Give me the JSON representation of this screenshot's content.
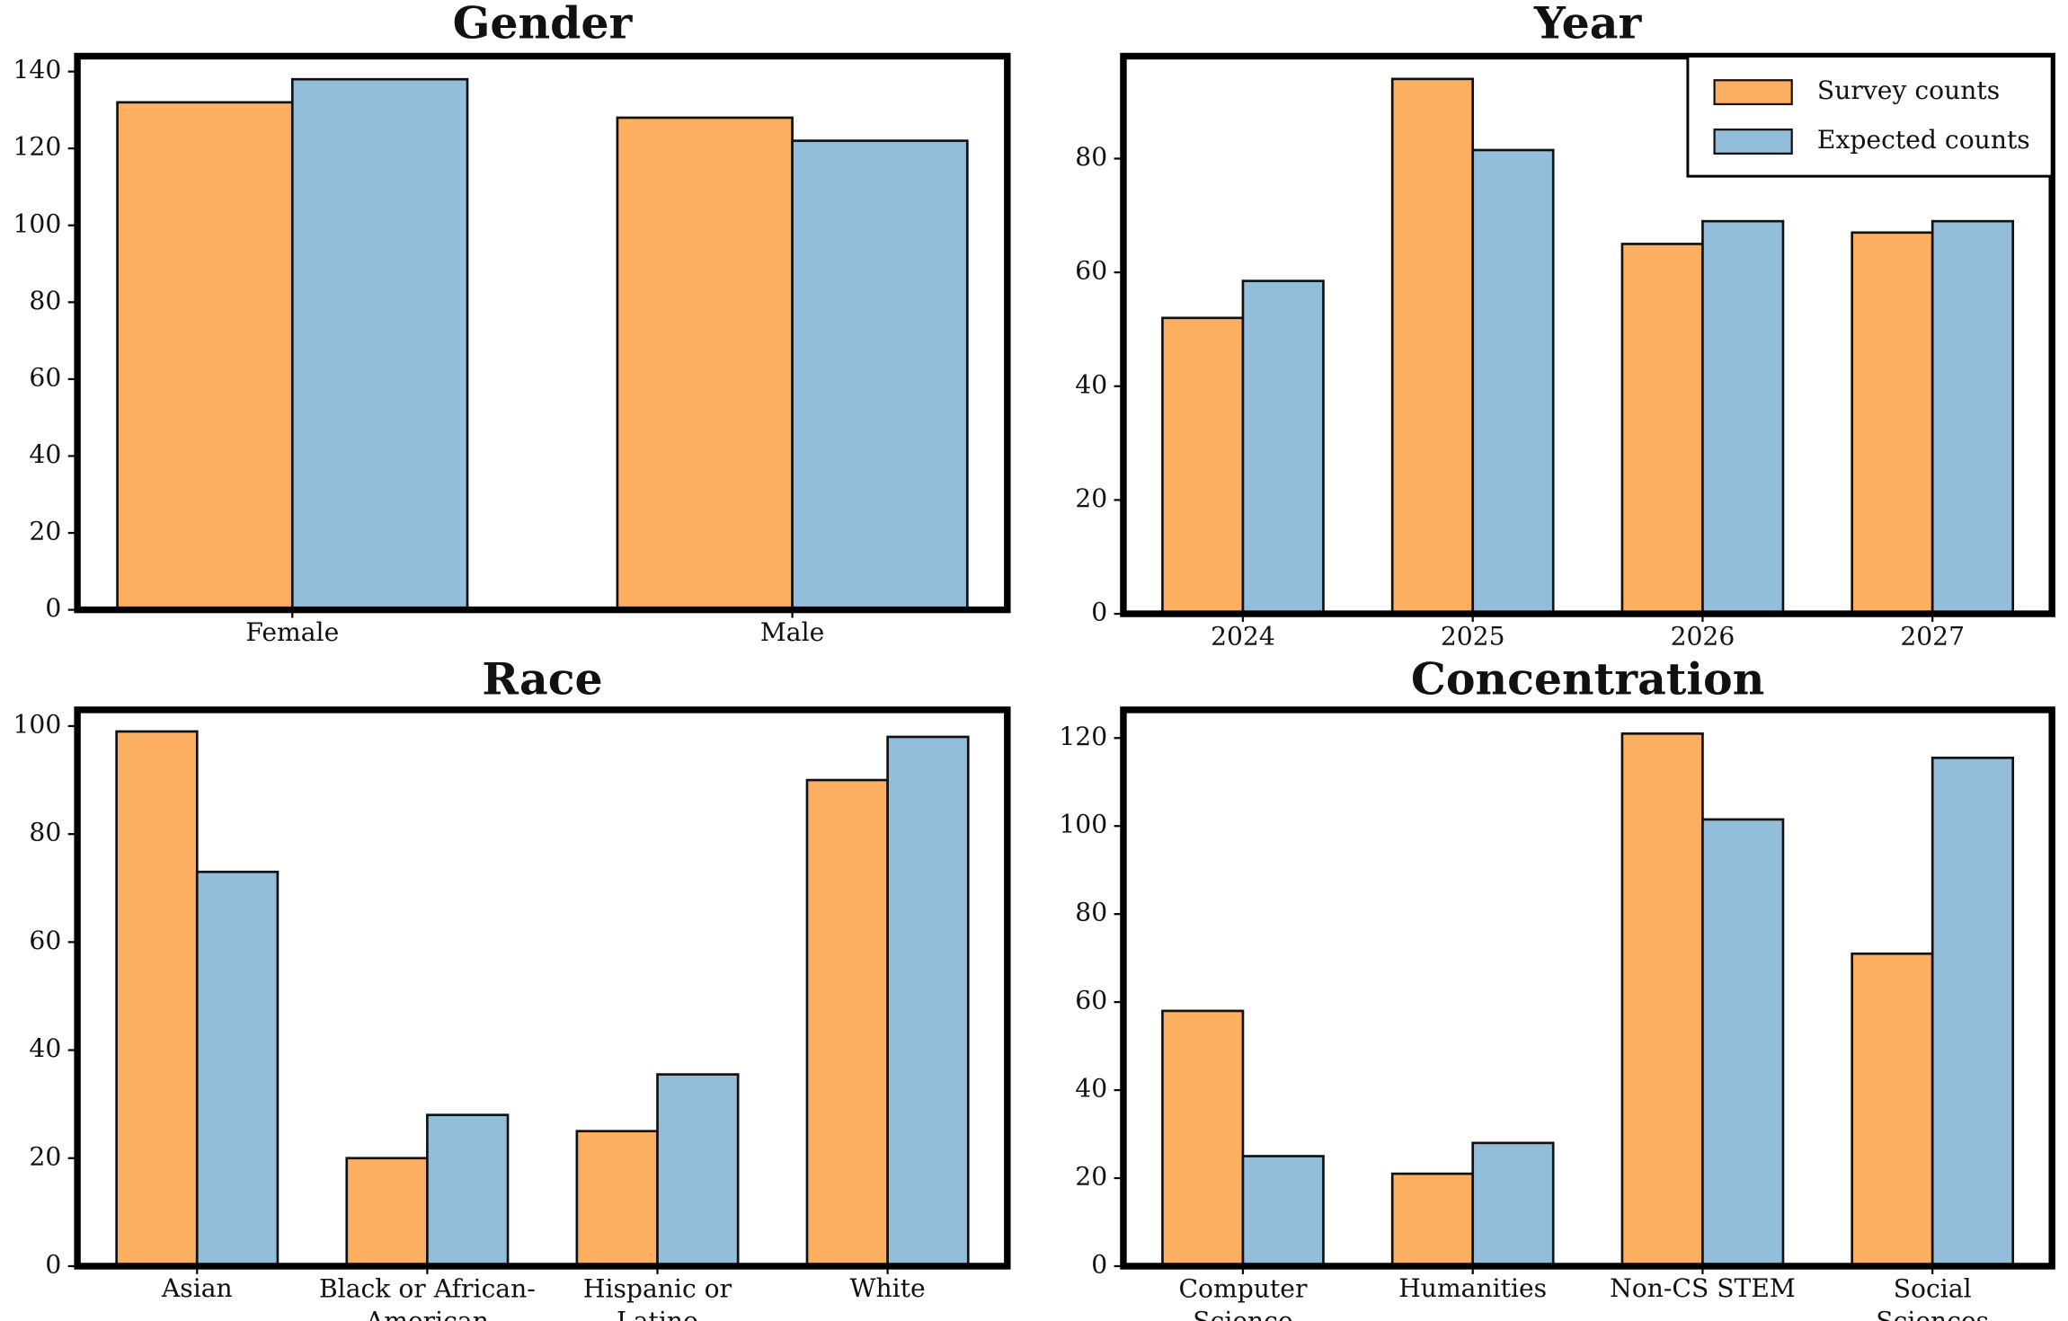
{
  "chart_data": [
    {
      "type": "bar",
      "title": "Gender",
      "categories": [
        "Female",
        "Male"
      ],
      "series": [
        {
          "name": "Survey counts",
          "color": "#fcae61",
          "values": [
            132,
            128
          ]
        },
        {
          "name": "Expected counts",
          "color": "#92bddb",
          "values": [
            138,
            122
          ]
        }
      ],
      "ylim": [
        0,
        144
      ],
      "yticks": [
        0,
        20,
        40,
        60,
        80,
        100,
        120,
        140
      ],
      "legend": false
    },
    {
      "type": "bar",
      "title": "Year",
      "categories": [
        "2024",
        "2025",
        "2026",
        "2027"
      ],
      "series": [
        {
          "name": "Survey counts",
          "color": "#fcae61",
          "values": [
            52,
            94,
            65,
            67
          ]
        },
        {
          "name": "Expected counts",
          "color": "#92bddb",
          "values": [
            58.5,
            81.5,
            69,
            69
          ]
        }
      ],
      "ylim": [
        0,
        98
      ],
      "yticks": [
        0,
        20,
        40,
        60,
        80
      ],
      "legend": "upper right"
    },
    {
      "type": "bar",
      "title": "Race",
      "categories": [
        "Asian",
        "Black or African-\nAmerican",
        "Hispanic or\nLatino",
        "White"
      ],
      "series": [
        {
          "name": "Survey counts",
          "color": "#fcae61",
          "values": [
            99,
            20,
            25,
            90
          ]
        },
        {
          "name": "Expected counts",
          "color": "#92bddb",
          "values": [
            73,
            28,
            35.5,
            98
          ]
        }
      ],
      "ylim": [
        0,
        103
      ],
      "yticks": [
        0,
        20,
        40,
        60,
        80,
        100
      ],
      "legend": false
    },
    {
      "type": "bar",
      "title": "Concentration",
      "categories": [
        "Computer\nScience",
        "Humanities",
        "Non-CS STEM",
        "Social\nSciences"
      ],
      "series": [
        {
          "name": "Survey counts",
          "color": "#fcae61",
          "values": [
            58,
            21,
            121,
            71
          ]
        },
        {
          "name": "Expected counts",
          "color": "#92bddb",
          "values": [
            25,
            28,
            101.5,
            115.5
          ]
        }
      ],
      "ylim": [
        0,
        126.4
      ],
      "yticks": [
        0,
        20,
        40,
        60,
        80,
        100,
        120
      ],
      "legend": false
    }
  ]
}
